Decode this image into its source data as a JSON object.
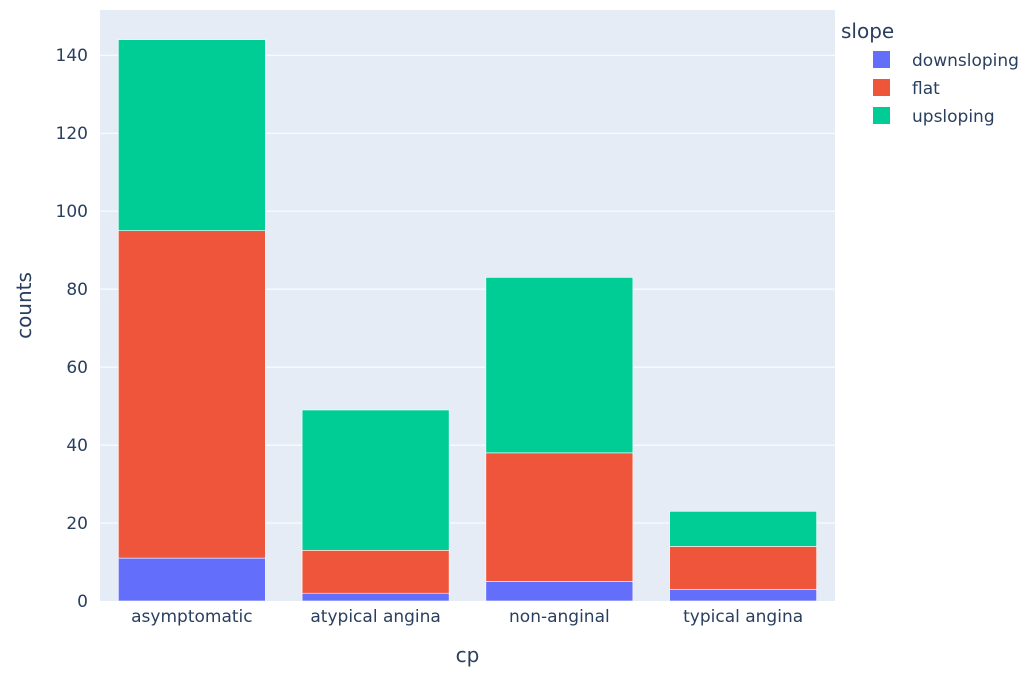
{
  "chart_data": {
    "type": "bar",
    "barmode": "stack",
    "categories": [
      "asymptomatic",
      "atypical angina",
      "non-anginal",
      "typical angina"
    ],
    "series": [
      {
        "name": "downsloping",
        "values": [
          11,
          2,
          5,
          3
        ],
        "color": "#636efa"
      },
      {
        "name": "flat",
        "values": [
          84,
          11,
          33,
          11
        ],
        "color": "#ef553b"
      },
      {
        "name": "upsloping",
        "values": [
          49,
          36,
          45,
          9
        ],
        "color": "#00cc96"
      }
    ],
    "xlabel": "cp",
    "ylabel": "counts",
    "ylim": [
      0,
      151.6
    ],
    "yticks": [
      0,
      20,
      40,
      60,
      80,
      100,
      120,
      140
    ],
    "grid": true,
    "legend": {
      "title": "slope",
      "position": "top-right"
    },
    "colors": {
      "plot_background": "#e5ecf6",
      "gridline": "#ffffff",
      "text": "#2a3f5f"
    }
  }
}
